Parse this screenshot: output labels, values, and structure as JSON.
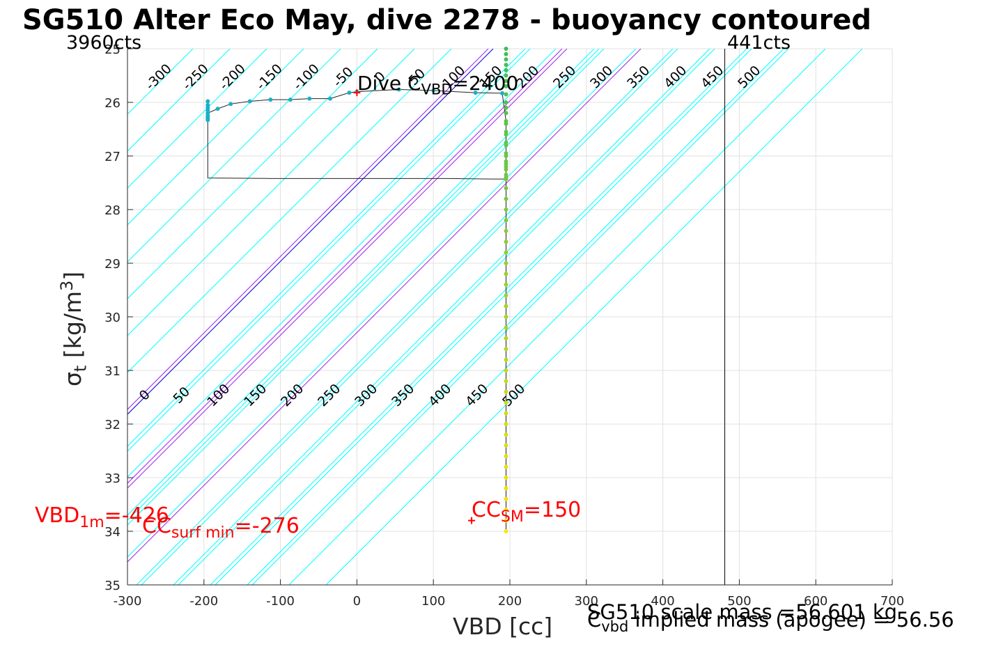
{
  "chart_data": {
    "type": "scatter",
    "title": "SG510 Alter Eco May, dive 2278 - buoyancy contoured",
    "xlabel": "VBD [cc]",
    "ylabel_main": "σ",
    "ylabel_sub": "t",
    "ylabel_unit": " [kg/m",
    "ylabel_sup": "3",
    "ylabel_close": "]",
    "xlim": [
      -300,
      700
    ],
    "ylim": [
      25,
      35
    ],
    "y_reversed": true,
    "grid": true,
    "x_ticks": [
      -300,
      -200,
      -100,
      0,
      100,
      200,
      300,
      400,
      500,
      600,
      700
    ],
    "y_ticks": [
      25,
      26,
      27,
      28,
      29,
      30,
      31,
      32,
      33,
      34,
      35
    ],
    "y_tick_labels": [
      "25",
      "26",
      "27",
      "28",
      "29",
      "30",
      "31",
      "32",
      "33",
      "34",
      "35"
    ],
    "counts_left": "3960cts",
    "counts_right": "441cts",
    "counts_right_vbd": 481,
    "contours_top": [
      -300,
      -250,
      -200,
      -150,
      -100,
      -50,
      0,
      50,
      100,
      150,
      200,
      250,
      300,
      350,
      400,
      450,
      500
    ],
    "contours_top_labels": [
      "-300",
      "-250",
      "-200",
      "-150",
      "-100",
      "-50",
      "0",
      "50",
      "100",
      "150",
      "200",
      "250",
      "300",
      "350",
      "400",
      "450",
      "500"
    ],
    "contours_bottom": [
      0,
      50,
      100,
      150,
      200,
      250,
      300,
      350,
      400,
      450,
      500
    ],
    "contours_bottom_labels": [
      "0",
      "50",
      "100",
      "150",
      "200",
      "250",
      "300",
      "350",
      "400",
      "450",
      "500"
    ],
    "contours_top_highlight": [
      {
        "value": 100,
        "color": "#a020f0"
      },
      {
        "value": 200,
        "color": "#a020f0"
      }
    ],
    "contours_bottom_highlight": [
      {
        "value": 0,
        "color": "#0000cc"
      },
      {
        "value": 100,
        "color": "#a020f0"
      },
      {
        "value": 200,
        "color": "#a020f0"
      }
    ],
    "dive_path": {
      "x": [
        -195,
        -195,
        -195,
        -195,
        -195,
        -195,
        -195,
        -195,
        -195,
        -182,
        -165,
        -140,
        -113,
        -87,
        -62,
        -35,
        -10,
        0,
        55,
        100,
        155,
        190,
        195,
        195,
        195,
        195,
        195,
        195,
        195,
        195,
        195,
        195,
        195,
        195,
        195,
        195,
        195,
        195,
        195,
        195,
        195,
        195,
        195,
        195,
        195,
        195,
        195,
        195,
        195,
        195,
        195,
        195,
        195,
        195,
        195,
        195,
        195,
        195,
        195,
        195,
        195,
        195,
        195,
        195,
        195,
        195,
        195,
        195,
        195,
        195,
        195,
        195,
        195,
        195,
        195,
        195,
        195,
        195,
        195,
        195,
        195,
        195,
        195,
        195,
        195,
        195,
        195,
        195,
        195,
        195,
        195,
        195,
        195
      ],
      "y": [
        25.98,
        26.05,
        26.1,
        26.15,
        26.2,
        26.25,
        26.28,
        26.3,
        26.33,
        26.12,
        26.03,
        25.98,
        25.95,
        25.95,
        25.93,
        25.93,
        25.82,
        25.8,
        25.76,
        25.78,
        25.82,
        25.83,
        25.0,
        25.1,
        25.2,
        25.3,
        25.4,
        25.5,
        25.6,
        25.7,
        25.85,
        26.0,
        26.2,
        26.4,
        26.6,
        26.8,
        27.0,
        27.2,
        27.4,
        27.6,
        27.8,
        28.0,
        28.2,
        28.4,
        28.6,
        28.8,
        29.0,
        29.2,
        29.4,
        29.6,
        29.8,
        30.0,
        30.2,
        30.4,
        30.6,
        30.8,
        31.0,
        31.2,
        31.4,
        31.6,
        31.8,
        32.0,
        32.2,
        32.4,
        32.6,
        32.8,
        33.0,
        33.2,
        33.4,
        33.6,
        33.8,
        34.0,
        27.43,
        27.43,
        27.43,
        27.42,
        27.42,
        27.42,
        27.42,
        27.42,
        27.42,
        27.41,
        27.41,
        27.35,
        27.25,
        27.15,
        27.1,
        26.95,
        26.75,
        26.55,
        26.35,
        26.2,
        26.1
      ]
    },
    "descent_line": {
      "x": [
        -195,
        -195,
        -195,
        -182,
        -165,
        -140,
        -113,
        -87,
        -62,
        -35,
        -10,
        0,
        55,
        100,
        155,
        190,
        195
      ],
      "y": [
        25.98,
        26.3,
        26.2,
        26.12,
        26.03,
        25.98,
        25.95,
        25.95,
        25.93,
        25.93,
        25.82,
        25.8,
        25.76,
        25.78,
        25.82,
        25.83,
        26.35
      ]
    },
    "bottom_line": {
      "x": [
        195,
        176,
        120,
        63,
        0,
        -73,
        -112,
        -195,
        -195
      ],
      "y": [
        27.43,
        27.43,
        27.42,
        27.42,
        27.42,
        27.42,
        27.42,
        27.41,
        26.2
      ]
    },
    "vertical_line": {
      "x": [
        195,
        195
      ],
      "y": [
        26.35,
        34.0
      ]
    },
    "markers": [
      {
        "x": 0,
        "y": 25.82,
        "color": "#ff0000"
      },
      {
        "x": 150,
        "y": 33.8,
        "color": "#ff0000"
      }
    ],
    "dive_cvbd_main": "Dive C",
    "dive_cvbd_sub": "VBD",
    "dive_cvbd_value": "=2400",
    "vbd_1m_main": "VBD",
    "vbd_1m_sub": "1m",
    "vbd_1m_value": "=-426",
    "cc_surf_main": "CC",
    "cc_surf_sub": "surf min",
    "cc_surf_value": "=-276",
    "cc_sm_main": "CC",
    "cc_sm_sub": "SM",
    "cc_sm_value": "=150",
    "scale_mass": "SG510 scale mass =56.601 kg",
    "cvbd_main": "C",
    "cvbd_sub": "vbd",
    "implied_mass": " implied mass (apogee) = 56.56",
    "colors": {
      "contour": "#00ffff",
      "highlight": "#a020f0",
      "zero": "#0000cc",
      "grid": "#e0e0e0",
      "text_red": "#ff0000"
    }
  }
}
